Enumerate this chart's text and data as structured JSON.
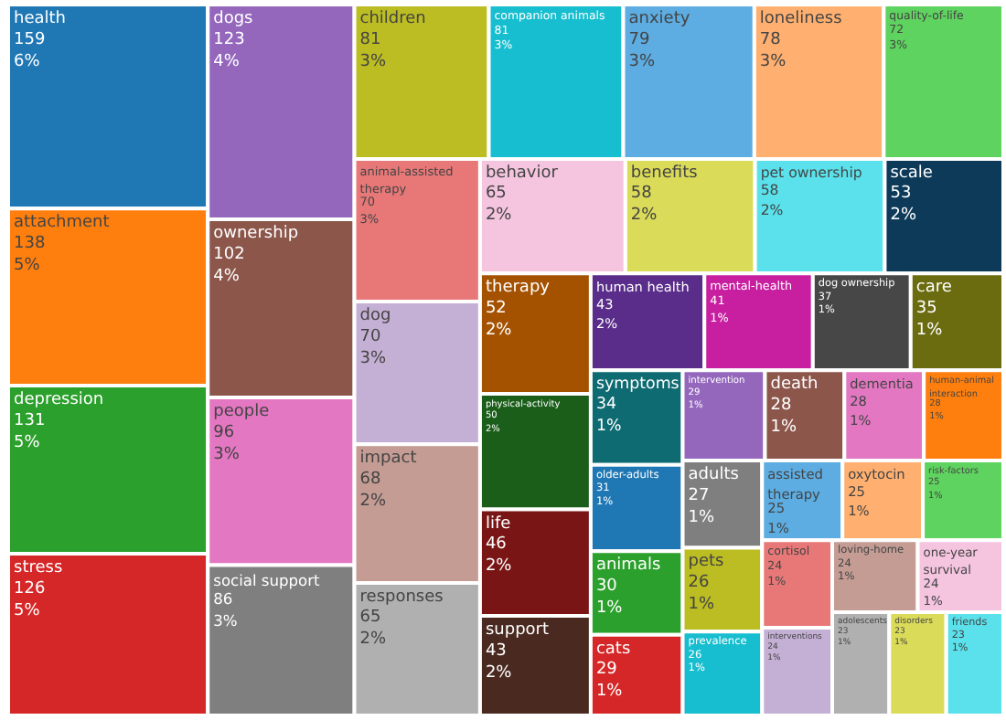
{
  "chart_data": {
    "type": "other",
    "categories": [
      "health",
      "attachment",
      "depression",
      "stress",
      "dogs",
      "ownership",
      "people",
      "social support",
      "children",
      "companion animals",
      "anxiety",
      "loneliness",
      "quality-of-life",
      "animal-assisted therapy",
      "dog",
      "impact",
      "responses",
      "behavior",
      "benefits",
      "pet ownership",
      "scale",
      "therapy",
      "physical-activity",
      "life",
      "support",
      "human health",
      "mental-health",
      "dog ownership",
      "care",
      "symptoms",
      "older-adults",
      "animals",
      "cats",
      "intervention",
      "death",
      "dementia",
      "human-animal interaction",
      "adults",
      "pets",
      "prevalence",
      "assisted therapy",
      "oxytocin",
      "risk-factors",
      "cortisol",
      "interventions",
      "loving-home",
      "one-year survival",
      "adolescents",
      "disorders",
      "friends"
    ],
    "values": [
      159,
      138,
      131,
      126,
      123,
      102,
      96,
      86,
      81,
      81,
      79,
      78,
      72,
      70,
      70,
      68,
      65,
      65,
      58,
      58,
      53,
      52,
      50,
      46,
      43,
      43,
      41,
      37,
      35,
      34,
      31,
      30,
      29,
      29,
      28,
      28,
      28,
      27,
      26,
      26,
      25,
      25,
      25,
      24,
      24,
      24,
      24,
      23,
      23,
      23
    ],
    "value_labels": [
      "159\n6%",
      "138\n5%",
      "131\n5%",
      "126\n5%",
      "123\n4%",
      "102\n4%",
      "96\n3%",
      "86\n3%",
      "81\n3%",
      "81\n3%",
      "79\n3%",
      "78\n3%",
      "72\n3%",
      "70\n3%",
      "70\n3%",
      "68\n2%",
      "65\n2%",
      "65\n2%",
      "58\n2%",
      "58\n2%",
      "53\n2%",
      "52\n2%",
      "50\n2%",
      "46\n2%",
      "43\n2%",
      "43\n2%",
      "41\n1%",
      "37\n1%",
      "35\n1%",
      "34\n1%",
      "31\n1%",
      "30\n1%",
      "29\n1%",
      "29\n1%",
      "28\n1%",
      "28\n1%",
      "28\n1%",
      "27\n1%",
      "26\n1%",
      "26\n1%",
      "25\n1%",
      "25\n1%",
      "25\n1%",
      "24\n1%",
      "24\n1%",
      "24\n1%",
      "24\n1%",
      "23\n1%",
      "23\n1%",
      "23\n1%"
    ],
    "colors": [
      "#1f77b4",
      "#ff7f0e",
      "#2ca02c",
      "#d62728",
      "#9467bd",
      "#8c564b",
      "#e377c2",
      "#7f7f7f",
      "#bcbd22",
      "#17becf",
      "#5dade2",
      "#ffb070",
      "#5fd35f",
      "#e87878",
      "#c5b0d5",
      "#c49c94",
      "#b0b0b0",
      "#f5c5e0",
      "#dbdb5a",
      "#5ae1eb",
      "#0e3a5a",
      "#a55200",
      "#1a5e1a",
      "#7a1515",
      "#4a2a20",
      "#5a2d8a",
      "#c71fa0",
      "#474747",
      "#6b6b10",
      "#0e6b72",
      "#1f77b4",
      "#2ca02c",
      "#d62728",
      "#9467bd",
      "#8c564b",
      "#e377c2",
      "#ff7f0e",
      "#7f7f7f",
      "#bcbd22",
      "#17becf",
      "#5dade2",
      "#ffb070",
      "#5fd35f",
      "#e87878",
      "#c5b0d5",
      "#c49c94",
      "#f5c5e0",
      "#b0b0b0",
      "#dbdb5a",
      "#5ae1eb"
    ],
    "data_labels": true
  }
}
